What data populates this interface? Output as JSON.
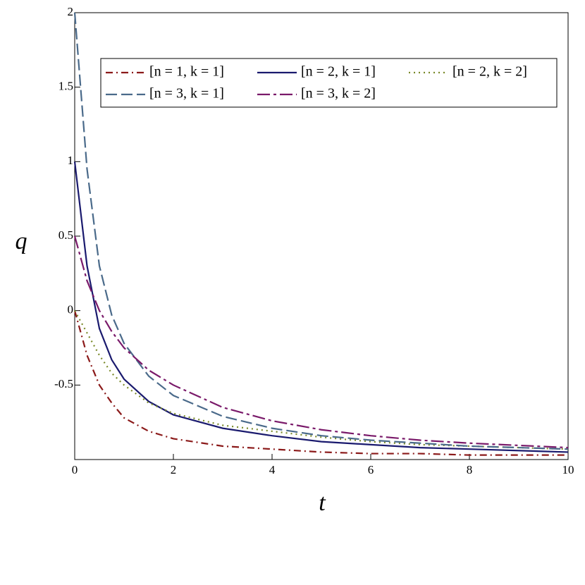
{
  "chart_data": {
    "type": "line",
    "xlabel": "t",
    "ylabel": "q",
    "x": [
      0,
      0.25,
      0.5,
      0.75,
      1,
      1.5,
      2,
      3,
      4,
      5,
      6,
      7,
      8,
      10
    ],
    "series": [
      {
        "name": "[n = 1, k = 1]",
        "color": "#8b1a1a",
        "values": [
          0,
          -0.3,
          -0.5,
          -0.62,
          -0.72,
          -0.81,
          -0.86,
          -0.91,
          -0.93,
          -0.95,
          -0.96,
          -0.96,
          -0.97,
          -0.97
        ]
      },
      {
        "name": "[n = 2, k = 1]",
        "color": "#1a1a6e",
        "values": [
          1,
          0.3,
          -0.12,
          -0.33,
          -0.46,
          -0.61,
          -0.7,
          -0.79,
          -0.84,
          -0.88,
          -0.9,
          -0.92,
          -0.93,
          -0.95
        ]
      },
      {
        "name": "[n = 2, k = 2]",
        "color": "#7a8a2a",
        "values": [
          0,
          -0.15,
          -0.3,
          -0.42,
          -0.5,
          -0.62,
          -0.69,
          -0.77,
          -0.81,
          -0.85,
          -0.88,
          -0.9,
          -0.91,
          -0.93
        ]
      },
      {
        "name": "[n = 3, k = 1]",
        "color": "#4a6a8a",
        "values": [
          2,
          0.95,
          0.3,
          -0.03,
          -0.22,
          -0.44,
          -0.57,
          -0.71,
          -0.79,
          -0.84,
          -0.87,
          -0.89,
          -0.91,
          -0.93
        ]
      },
      {
        "name": "[n = 3, k = 2]",
        "color": "#7a1a6a",
        "values": [
          0.5,
          0.2,
          0,
          -0.14,
          -0.25,
          -0.4,
          -0.5,
          -0.65,
          -0.74,
          -0.8,
          -0.84,
          -0.87,
          -0.89,
          -0.92
        ]
      }
    ],
    "xlim": [
      0,
      10
    ],
    "ylim": [
      -1,
      2
    ],
    "xticks": [
      0,
      2,
      4,
      6,
      8,
      10
    ],
    "yticks": [
      -0.5,
      0,
      0.5,
      1,
      1.5,
      2
    ]
  }
}
